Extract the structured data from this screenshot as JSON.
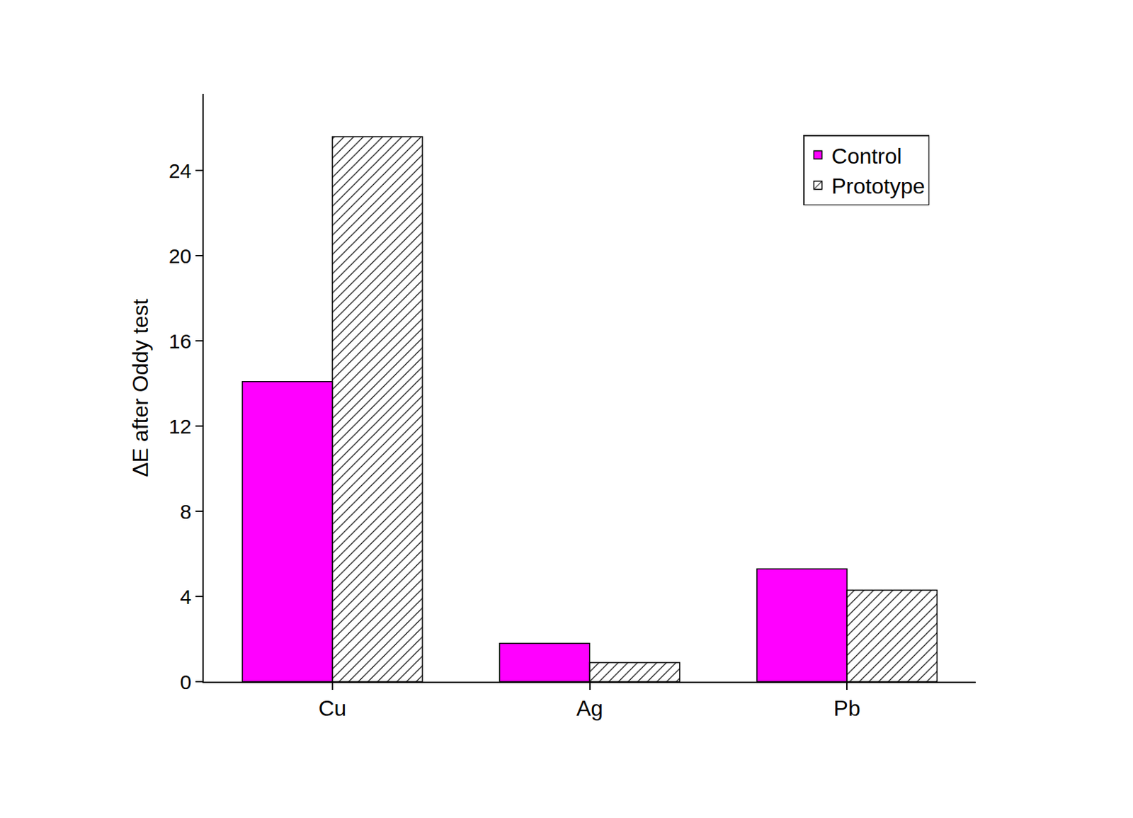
{
  "chart_data": {
    "type": "bar",
    "y_label": "ΔE after Oddy test",
    "categories": [
      "Cu",
      "Ag",
      "Pb"
    ],
    "series": [
      {
        "name": "Control",
        "color": "#ff00ff",
        "marker": "solid",
        "values": [
          14.1,
          1.8,
          5.3
        ]
      },
      {
        "name": "Prototype",
        "color": "#3ee6e6",
        "marker": "hatch",
        "values": [
          25.6,
          0.9,
          4.3
        ]
      }
    ],
    "ylim": [
      0,
      27.6
    ],
    "yticks": [
      0,
      4,
      8,
      12,
      16,
      20,
      24
    ],
    "grid": false,
    "legend": "upper right"
  }
}
